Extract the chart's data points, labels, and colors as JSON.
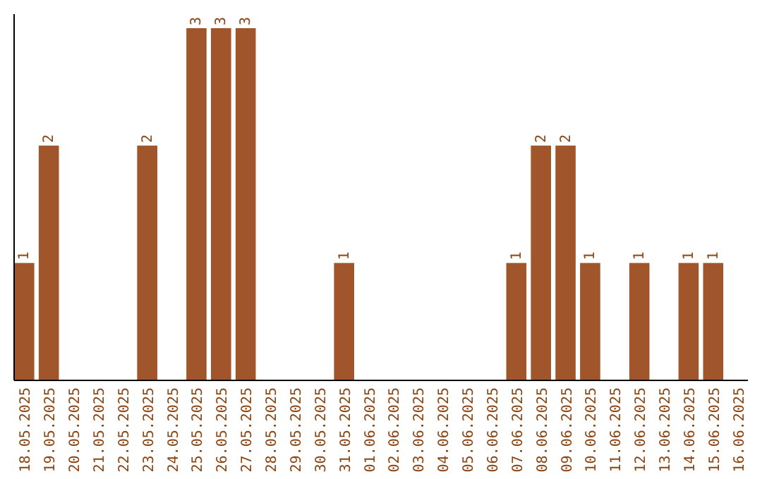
{
  "chart_data": {
    "type": "bar",
    "categories": [
      "18.05.2025",
      "19.05.2025",
      "20.05.2025",
      "21.05.2025",
      "22.05.2025",
      "23.05.2025",
      "24.05.2025",
      "25.05.2025",
      "26.05.2025",
      "27.05.2025",
      "28.05.2025",
      "29.05.2025",
      "30.05.2025",
      "31.05.2025",
      "01.06.2025",
      "02.06.2025",
      "03.06.2025",
      "04.06.2025",
      "05.06.2025",
      "06.06.2025",
      "07.06.2025",
      "08.06.2025",
      "09.06.2025",
      "10.06.2025",
      "11.06.2025",
      "12.06.2025",
      "13.06.2025",
      "14.06.2025",
      "15.06.2025",
      "16.06.2025"
    ],
    "values": [
      1,
      2,
      0,
      0,
      0,
      2,
      0,
      3,
      3,
      3,
      0,
      0,
      0,
      1,
      0,
      0,
      0,
      0,
      0,
      0,
      1,
      2,
      2,
      1,
      0,
      1,
      0,
      1,
      1,
      0
    ],
    "value_labels": [
      "1",
      "2",
      null,
      null,
      null,
      "2",
      null,
      "3",
      "3",
      "3",
      null,
      null,
      null,
      "1",
      null,
      null,
      null,
      null,
      null,
      null,
      "1",
      "2",
      "2",
      "1",
      null,
      "1",
      null,
      "1",
      "1",
      null
    ],
    "color": "#a0562a",
    "tick_labels": "x"
  }
}
